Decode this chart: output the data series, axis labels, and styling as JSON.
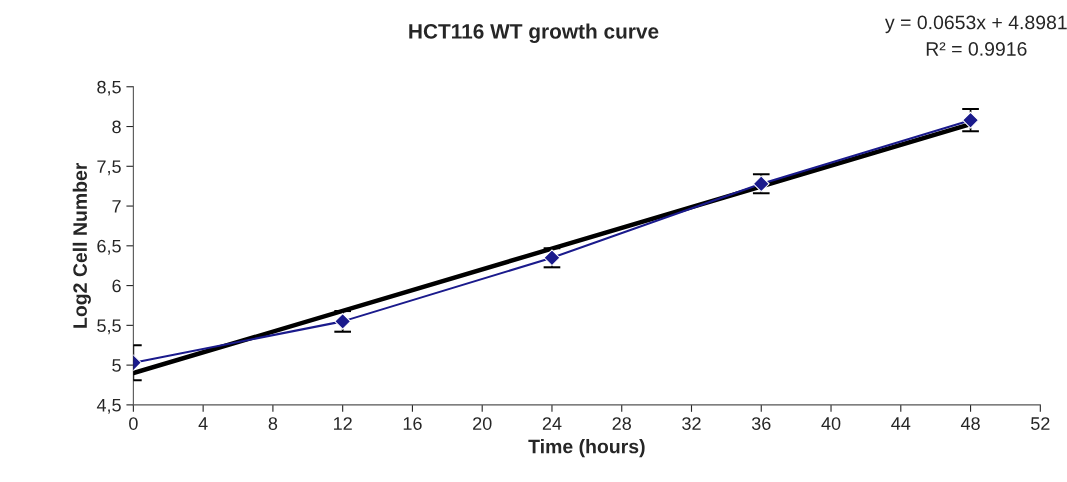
{
  "chart_data": {
    "type": "line",
    "title": "HCT116 WT growth curve",
    "xlabel": "Time (hours)",
    "ylabel": "Log2 Cell Number",
    "x": [
      0,
      12,
      24,
      36,
      48
    ],
    "series": [
      {
        "color": "#1a1a8c",
        "values": [
          5.03,
          5.55,
          6.35,
          7.28,
          8.08
        ],
        "errors": [
          0.22,
          0.13,
          0.12,
          0.12,
          0.14
        ],
        "marker": "diamond"
      },
      {
        "type": "line",
        "color": "#000000",
        "x": [
          0,
          48
        ],
        "values": [
          4.9,
          8.03
        ],
        "marker": "none"
      }
    ],
    "annotations": [
      "y = 0.0653x + 4.8981",
      "R² = 0.9916"
    ],
    "xlim": [
      0,
      52
    ],
    "xticks": [
      0,
      4,
      8,
      12,
      16,
      20,
      24,
      28,
      32,
      36,
      40,
      44,
      48,
      52
    ],
    "ylim": [
      4.5,
      8.5
    ],
    "yticks": [
      {
        "value": 4.5,
        "label": "4,5"
      },
      5,
      {
        "value": 5.5,
        "label": "5,5"
      },
      6,
      {
        "value": 6.5,
        "label": "6,5"
      },
      7,
      {
        "value": 7.5,
        "label": "7,5"
      },
      8,
      {
        "value": 8.5,
        "label": "8,5"
      }
    ],
    "grid": false,
    "legend": false
  }
}
